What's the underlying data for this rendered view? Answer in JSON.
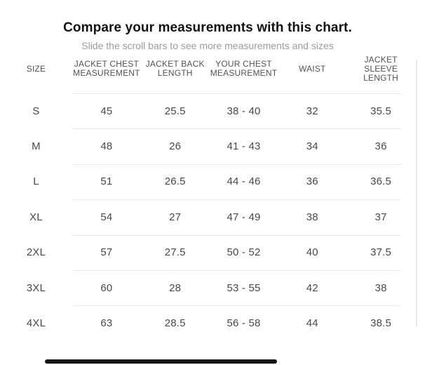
{
  "page": {
    "title": "Compare your measurements with this chart.",
    "subtitle": "Slide the scroll bars to see more measurements and sizes"
  },
  "table": {
    "size_header": "SIZE",
    "columns": [
      "JACKET CHEST MEASUREMENT",
      "JACKET BACK LENGTH",
      "YOUR CHEST MEASUREMENT",
      "WAIST",
      "JACKET SLEEVE LENGTH"
    ],
    "rows": [
      {
        "size": "S",
        "values": [
          "45",
          "25.5",
          "38 - 40",
          "32",
          "35.5"
        ]
      },
      {
        "size": "M",
        "values": [
          "48",
          "26",
          "41 - 43",
          "34",
          "36"
        ]
      },
      {
        "size": "L",
        "values": [
          "51",
          "26.5",
          "44 - 46",
          "36",
          "36.5"
        ]
      },
      {
        "size": "XL",
        "values": [
          "54",
          "27",
          "47 - 49",
          "38",
          "37"
        ]
      },
      {
        "size": "2XL",
        "values": [
          "57",
          "27.5",
          "50 - 52",
          "40",
          "37.5"
        ]
      },
      {
        "size": "3XL",
        "values": [
          "60",
          "28",
          "53 - 55",
          "42",
          "38"
        ]
      },
      {
        "size": "4XL",
        "values": [
          "63",
          "28.5",
          "56 - 58",
          "44",
          "38.5"
        ]
      }
    ]
  },
  "colors": {
    "divider": "#eaeaea",
    "scrollbar_thumb": "#161616",
    "title_text": "#111111",
    "subtitle_text": "#9c9c9c",
    "header_text": "#525252",
    "value_text": "#484848"
  }
}
